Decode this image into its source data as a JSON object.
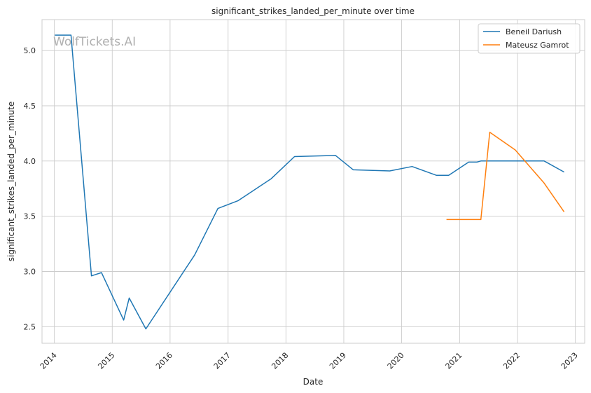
{
  "chart_data": {
    "type": "line",
    "title": "significant_strikes_landed_per_minute over time",
    "xlabel": "Date",
    "ylabel": "significant_strikes_landed_per_minute",
    "watermark": "WolfTickets.AI",
    "xlim": [
      "2013-10-15",
      "2023-03-01"
    ],
    "ylim": [
      2.35,
      5.28
    ],
    "x_ticks": [
      "2014",
      "2015",
      "2016",
      "2017",
      "2018",
      "2019",
      "2020",
      "2021",
      "2022",
      "2023"
    ],
    "y_ticks": [
      "2.5",
      "3.0",
      "3.5",
      "4.0",
      "4.5",
      "5.0"
    ],
    "grid": true,
    "legend_position": "top-right",
    "series": [
      {
        "name": "Beneil Dariush",
        "color": "#1f77b4",
        "points": [
          [
            "2014-01-04",
            5.14
          ],
          [
            "2014-04-16",
            5.14
          ],
          [
            "2014-08-23",
            2.96
          ],
          [
            "2014-10-25",
            2.99
          ],
          [
            "2015-03-14",
            2.56
          ],
          [
            "2015-04-18",
            2.76
          ],
          [
            "2015-08-01",
            2.48
          ],
          [
            "2016-06-04",
            3.15
          ],
          [
            "2016-10-29",
            3.57
          ],
          [
            "2017-03-04",
            3.64
          ],
          [
            "2017-09-30",
            3.84
          ],
          [
            "2018-02-24",
            4.04
          ],
          [
            "2018-11-10",
            4.05
          ],
          [
            "2019-03-02",
            3.92
          ],
          [
            "2019-10-18",
            3.91
          ],
          [
            "2020-03-07",
            3.95
          ],
          [
            "2020-08-08",
            3.87
          ],
          [
            "2020-10-24",
            3.87
          ],
          [
            "2021-02-27",
            3.99
          ],
          [
            "2021-04-20",
            3.99
          ],
          [
            "2021-05-15",
            4.0
          ],
          [
            "2022-06-18",
            4.0
          ],
          [
            "2022-10-22",
            3.9
          ]
        ]
      },
      {
        "name": "Mateusz Gamrot",
        "color": "#ff7f0e",
        "points": [
          [
            "2020-10-10",
            3.47
          ],
          [
            "2021-05-15",
            3.47
          ],
          [
            "2021-07-10",
            4.26
          ],
          [
            "2021-12-18",
            4.1
          ],
          [
            "2022-06-18",
            3.8
          ],
          [
            "2022-10-22",
            3.54
          ]
        ]
      }
    ]
  }
}
